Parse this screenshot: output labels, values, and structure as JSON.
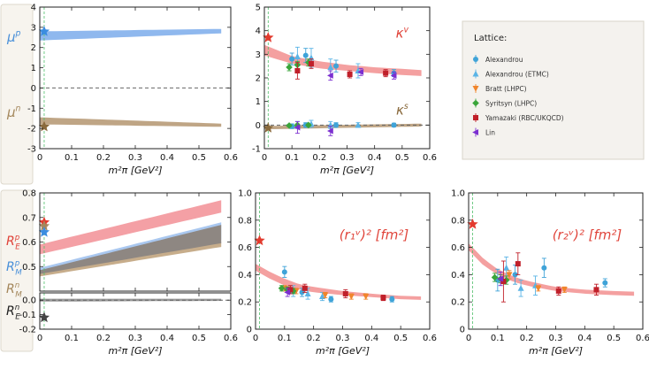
{
  "chart_data": [
    {
      "id": "magmom",
      "type": "area",
      "xlabel": "m²π [GeV²]",
      "xlim": [
        0,
        0.6
      ],
      "ylim": [
        -3,
        4
      ],
      "xticks": [
        "0",
        "0.1",
        "0.2",
        "0.3",
        "0.4",
        "0.5",
        "0.6"
      ],
      "yticks": [
        "-3",
        "-2",
        "-1",
        "0",
        "1",
        "2",
        "3",
        "4"
      ],
      "side_labels": [
        {
          "base": "μ",
          "sup": "p",
          "color": "#4a90d9"
        },
        {
          "base": "μ",
          "sup": "n",
          "color": "#a4875c"
        }
      ],
      "bands": [
        {
          "name": "mu-p",
          "color": "#8fb8ee",
          "x": [
            0.0,
            0.57
          ],
          "lower": [
            2.35,
            2.7
          ],
          "upper": [
            2.8,
            2.92
          ]
        },
        {
          "name": "mu-n",
          "color": "#bfa585",
          "x": [
            0.0,
            0.57
          ],
          "lower": [
            -1.8,
            -1.92
          ],
          "upper": [
            -1.45,
            -1.76
          ]
        }
      ],
      "stars": [
        {
          "name": "mu-p-exp",
          "x": 0.0138,
          "y": 2.793,
          "color": "#3b8de0"
        },
        {
          "name": "mu-n-exp",
          "x": 0.0138,
          "y": -1.913,
          "color": "#8a6a3d"
        }
      ],
      "hlines": [
        0
      ]
    },
    {
      "id": "kappa",
      "type": "scatter",
      "xlabel": "m²π [GeV²]",
      "xlim": [
        0,
        0.6
      ],
      "ylim": [
        -1,
        5
      ],
      "xticks": [
        "0",
        "0.1",
        "0.2",
        "0.3",
        "0.4",
        "0.5",
        "0.6"
      ],
      "yticks": [
        "-1",
        "0",
        "1",
        "2",
        "3",
        "4",
        "5"
      ],
      "annotations": [
        {
          "base": "κ",
          "sup": "v",
          "x": 0.5,
          "y": 3.7,
          "color": "#e0443a"
        },
        {
          "base": "κ",
          "sup": "s",
          "x": 0.5,
          "y": 0.45,
          "color": "#8a6a3d"
        }
      ],
      "bands": [
        {
          "name": "kappa-v",
          "color": "#f4a0a0",
          "x": [
            0.0,
            0.1,
            0.2,
            0.3,
            0.4,
            0.5,
            0.57
          ],
          "lower": [
            2.95,
            2.6,
            2.4,
            2.3,
            2.2,
            2.12,
            2.08
          ],
          "upper": [
            3.4,
            2.92,
            2.7,
            2.55,
            2.45,
            2.38,
            2.33
          ]
        },
        {
          "name": "kappa-s",
          "color": "#bfa585",
          "x": [
            0.0,
            0.57
          ],
          "lower": [
            -0.18,
            -0.06
          ],
          "upper": [
            -0.04,
            0.06
          ]
        }
      ],
      "stars": [
        {
          "name": "kappa-v-exp",
          "x": 0.0138,
          "y": 3.706,
          "color": "#e23b2e"
        },
        {
          "name": "kappa-s-exp",
          "x": 0.0138,
          "y": -0.12,
          "color": "#8a6a3d"
        }
      ],
      "series": [
        {
          "name": "Alexandrou",
          "marker": "circle",
          "color": "#3fa3d8",
          "points": [
            [
              0.1,
              2.8,
              0.25
            ],
            [
              0.15,
              2.95,
              0.3
            ],
            [
              0.26,
              2.5,
              0.25
            ],
            [
              0.47,
              2.2,
              0.15
            ],
            [
              0.1,
              -0.05,
              0.1
            ],
            [
              0.15,
              0.0,
              0.1
            ],
            [
              0.26,
              0.0,
              0.1
            ],
            [
              0.47,
              0.0,
              0.08
            ]
          ]
        },
        {
          "name": "Alexandrou (ETMC)",
          "marker": "triangle-up",
          "color": "#5ab4e6",
          "points": [
            [
              0.12,
              2.9,
              0.4
            ],
            [
              0.17,
              2.85,
              0.4
            ],
            [
              0.24,
              2.45,
              0.35
            ],
            [
              0.34,
              2.3,
              0.3
            ],
            [
              0.12,
              0.0,
              0.15
            ],
            [
              0.17,
              0.05,
              0.15
            ],
            [
              0.24,
              0.0,
              0.15
            ],
            [
              0.34,
              0.0,
              0.1
            ]
          ]
        },
        {
          "name": "Bratt (LHPC)",
          "marker": "triangle-down",
          "color": "#f0852c",
          "points": []
        },
        {
          "name": "Syritsyn (LHPC)",
          "marker": "diamond",
          "color": "#3aa53a",
          "points": [
            [
              0.09,
              2.45,
              0.15
            ],
            [
              0.12,
              2.55,
              0.15
            ],
            [
              0.16,
              2.65,
              0.15
            ],
            [
              0.09,
              -0.02,
              0.05
            ],
            [
              0.12,
              0.0,
              0.05
            ],
            [
              0.16,
              0.0,
              0.05
            ]
          ]
        },
        {
          "name": "Yamazaki (RBC/UKQCD)",
          "marker": "square",
          "color": "#c0202a",
          "points": [
            [
              0.12,
              2.3,
              0.35
            ],
            [
              0.17,
              2.6,
              0.2
            ],
            [
              0.31,
              2.15,
              0.15
            ],
            [
              0.44,
              2.2,
              0.15
            ]
          ]
        },
        {
          "name": "Lin",
          "marker": "triangle-left",
          "color": "#7b2fd0",
          "points": [
            [
              0.12,
              -0.1,
              0.25
            ],
            [
              0.24,
              -0.25,
              0.2
            ],
            [
              0.24,
              2.1,
              0.2
            ],
            [
              0.35,
              2.25,
              0.15
            ],
            [
              0.47,
              2.1,
              0.15
            ]
          ]
        }
      ],
      "hlines": [
        0
      ]
    },
    {
      "id": "ratios",
      "type": "area",
      "xlabel": "m²π [GeV²]",
      "xlim": [
        0,
        0.6
      ],
      "ylim_top": [
        0.4,
        0.8
      ],
      "ylim_bottom": [
        -0.2,
        0.05
      ],
      "xticks": [
        "0",
        "0.1",
        "0.2",
        "0.3",
        "0.4",
        "0.5",
        "0.6"
      ],
      "yticks_top": [
        "0.8",
        "0.7",
        "0.6",
        "0.5"
      ],
      "yticks_bottom": [
        "0.0",
        "-0.1",
        "-0.2"
      ],
      "side_labels": [
        {
          "base": "R",
          "sup": "p",
          "sub": "E",
          "color": "#e0443a"
        },
        {
          "base": "R",
          "sup": "p",
          "sub": "M",
          "color": "#4a90d9"
        },
        {
          "base": "R",
          "sup": "n",
          "sub": "M",
          "color": "#a4875c"
        },
        {
          "base": "R",
          "sup": "n",
          "sub": "E",
          "color": "#222222"
        }
      ],
      "bands": [
        {
          "name": "RE-p",
          "color": "#f4a0a5",
          "x": [
            0.0,
            0.57
          ],
          "lower": [
            0.55,
            0.72
          ],
          "upper": [
            0.59,
            0.77
          ]
        },
        {
          "name": "RM-p",
          "color": "#a9c7ef",
          "x": [
            0.0,
            0.57
          ],
          "lower": [
            0.47,
            0.61
          ],
          "upper": [
            0.495,
            0.68
          ]
        },
        {
          "name": "RM-n",
          "color": "#c7ad8b",
          "x": [
            0.0,
            0.57
          ],
          "lower": [
            0.46,
            0.58
          ],
          "upper": [
            0.48,
            0.6
          ]
        },
        {
          "name": "RM-overlap",
          "color": "#8e8782",
          "x": [
            0.0,
            0.57
          ],
          "lower": [
            0.47,
            0.595
          ],
          "upper": [
            0.485,
            0.67
          ]
        },
        {
          "name": "RE-n",
          "color": "#999999",
          "x": [
            0.0,
            0.57
          ],
          "lower": [
            -0.01,
            -0.005
          ],
          "upper": [
            0.01,
            0.01
          ]
        }
      ],
      "stars": [
        {
          "name": "RE-p-exp",
          "x": 0.0138,
          "y": 0.68,
          "color": "#e23b2e",
          "panel": "top"
        },
        {
          "name": "RM-n-exp",
          "x": 0.0138,
          "y": 0.665,
          "color": "#a4875c",
          "panel": "top"
        },
        {
          "name": "RM-p-exp",
          "x": 0.0138,
          "y": 0.64,
          "color": "#3b8de0",
          "panel": "top"
        },
        {
          "name": "RE-n-exp",
          "x": 0.0138,
          "y": -0.12,
          "color": "#444444",
          "panel": "bottom"
        }
      ],
      "hlines": [
        0
      ]
    },
    {
      "id": "r1v",
      "type": "scatter",
      "xlabel": "m²π [GeV²]",
      "annotation": {
        "text": "(r₁ᵛ)² [fm²]",
        "color": "#e0443a"
      },
      "xlim": [
        0,
        0.6
      ],
      "ylim": [
        0,
        1.0
      ],
      "xticks": [
        "0",
        "0.1",
        "0.2",
        "0.3",
        "0.4",
        "0.5",
        "0.6"
      ],
      "yticks": [
        "0",
        "0.2",
        "0.4",
        "0.6",
        "0.8",
        "1.0"
      ],
      "bands": [
        {
          "name": "r1v",
          "color": "#f4a0a0",
          "x": [
            0.0,
            0.05,
            0.1,
            0.15,
            0.2,
            0.3,
            0.4,
            0.5,
            0.57
          ],
          "lower": [
            0.43,
            0.37,
            0.32,
            0.29,
            0.27,
            0.25,
            0.235,
            0.22,
            0.215
          ],
          "upper": [
            0.48,
            0.42,
            0.37,
            0.33,
            0.31,
            0.28,
            0.26,
            0.245,
            0.24
          ]
        },
        {
          "name": "r1v-exp",
          "color": "#f4a0a0",
          "x": [
            0.0,
            0.0
          ],
          "lower": [
            0,
            0
          ],
          "upper": [
            0,
            0
          ]
        }
      ],
      "stars": [
        {
          "name": "r1v-exp",
          "x": 0.0138,
          "y": 0.65,
          "color": "#e23b2e"
        }
      ],
      "series": [
        {
          "name": "Alexandrou",
          "marker": "circle",
          "color": "#3fa3d8",
          "points": [
            [
              0.1,
              0.42,
              0.04
            ],
            [
              0.16,
              0.27,
              0.03
            ],
            [
              0.26,
              0.22,
              0.02
            ],
            [
              0.47,
              0.22,
              0.02
            ]
          ]
        },
        {
          "name": "Alexandrou (ETMC)",
          "marker": "triangle-up",
          "color": "#5ab4e6",
          "points": [
            [
              0.13,
              0.28,
              0.04
            ],
            [
              0.18,
              0.26,
              0.04
            ],
            [
              0.23,
              0.24,
              0.03
            ]
          ]
        },
        {
          "name": "Bratt (LHPC)",
          "marker": "triangle-down",
          "color": "#f0852c",
          "points": [
            [
              0.1,
              0.3,
              0.02
            ],
            [
              0.14,
              0.28,
              0.02
            ],
            [
              0.24,
              0.25,
              0.02
            ],
            [
              0.33,
              0.24,
              0.02
            ],
            [
              0.38,
              0.24,
              0.02
            ]
          ]
        },
        {
          "name": "Syritsyn (LHPC)",
          "marker": "diamond",
          "color": "#3aa53a",
          "points": [
            [
              0.09,
              0.3,
              0.02
            ],
            [
              0.11,
              0.29,
              0.02
            ],
            [
              0.13,
              0.28,
              0.02
            ]
          ]
        },
        {
          "name": "Yamazaki (RBC/UKQCD)",
          "marker": "square",
          "color": "#c0202a",
          "points": [
            [
              0.12,
              0.29,
              0.03
            ],
            [
              0.17,
              0.3,
              0.03
            ],
            [
              0.31,
              0.26,
              0.03
            ],
            [
              0.44,
              0.23,
              0.02
            ]
          ]
        },
        {
          "name": "Lin",
          "marker": "triangle-left",
          "color": "#7b2fd0",
          "points": [
            [
              0.11,
              0.27,
              0.03
            ]
          ]
        }
      ]
    },
    {
      "id": "r2v",
      "type": "scatter",
      "xlabel": "m²π [GeV²]",
      "annotation": {
        "text": "(r₂ᵛ)² [fm²]",
        "color": "#e0443a"
      },
      "xlim": [
        0,
        0.6
      ],
      "ylim": [
        0,
        1.0
      ],
      "xticks": [
        "0",
        "0.1",
        "0.2",
        "0.3",
        "0.4",
        "0.5",
        "0.6"
      ],
      "yticks": [
        "0",
        "0.2",
        "0.4",
        "0.6",
        "0.8",
        "1.0"
      ],
      "bands": [
        {
          "name": "r2v",
          "color": "#f4a0a0",
          "x": [
            0.0,
            0.05,
            0.1,
            0.15,
            0.2,
            0.3,
            0.4,
            0.5,
            0.57
          ],
          "lower": [
            0.58,
            0.47,
            0.4,
            0.35,
            0.32,
            0.28,
            0.26,
            0.25,
            0.245
          ],
          "upper": [
            0.63,
            0.52,
            0.44,
            0.39,
            0.355,
            0.31,
            0.29,
            0.28,
            0.275
          ]
        }
      ],
      "stars": [
        {
          "name": "r2v-exp",
          "x": 0.0138,
          "y": 0.77,
          "color": "#e23b2e"
        }
      ],
      "series": [
        {
          "name": "Alexandrou",
          "marker": "circle",
          "color": "#3fa3d8",
          "points": [
            [
              0.1,
              0.36,
              0.08
            ],
            [
              0.16,
              0.4,
              0.07
            ],
            [
              0.26,
              0.45,
              0.07
            ],
            [
              0.47,
              0.34,
              0.03
            ]
          ]
        },
        {
          "name": "Alexandrou (ETMC)",
          "marker": "triangle-up",
          "color": "#5ab4e6",
          "points": [
            [
              0.13,
              0.45,
              0.08
            ],
            [
              0.18,
              0.3,
              0.06
            ],
            [
              0.23,
              0.32,
              0.07
            ]
          ]
        },
        {
          "name": "Bratt (LHPC)",
          "marker": "triangle-down",
          "color": "#f0852c",
          "points": [
            [
              0.14,
              0.4,
              0.03
            ],
            [
              0.24,
              0.3,
              0.02
            ],
            [
              0.33,
              0.29,
              0.02
            ]
          ]
        },
        {
          "name": "Syritsyn (LHPC)",
          "marker": "diamond",
          "color": "#3aa53a",
          "points": [
            [
              0.09,
              0.38,
              0.03
            ],
            [
              0.11,
              0.37,
              0.03
            ],
            [
              0.13,
              0.36,
              0.03
            ]
          ]
        },
        {
          "name": "Yamazaki (RBC/UKQCD)",
          "marker": "square",
          "color": "#c0202a",
          "points": [
            [
              0.12,
              0.35,
              0.15
            ],
            [
              0.17,
              0.48,
              0.08
            ],
            [
              0.31,
              0.28,
              0.03
            ],
            [
              0.44,
              0.29,
              0.04
            ]
          ]
        },
        {
          "name": "Lin",
          "marker": "triangle-left",
          "color": "#7b2fd0",
          "points": [
            [
              0.11,
              0.37,
              0.05
            ]
          ]
        }
      ]
    }
  ],
  "legend": {
    "title": "Lattice:",
    "entries": [
      "Alexandrou",
      "Alexandrou (ETMC)",
      "Bratt (LHPC)",
      "Syritsyn (LHPC)",
      "Yamazaki (RBC/UKQCD)",
      "Lin"
    ]
  },
  "colors": {
    "guide_line": "#4fbf6a",
    "zero_line": "#666666"
  }
}
